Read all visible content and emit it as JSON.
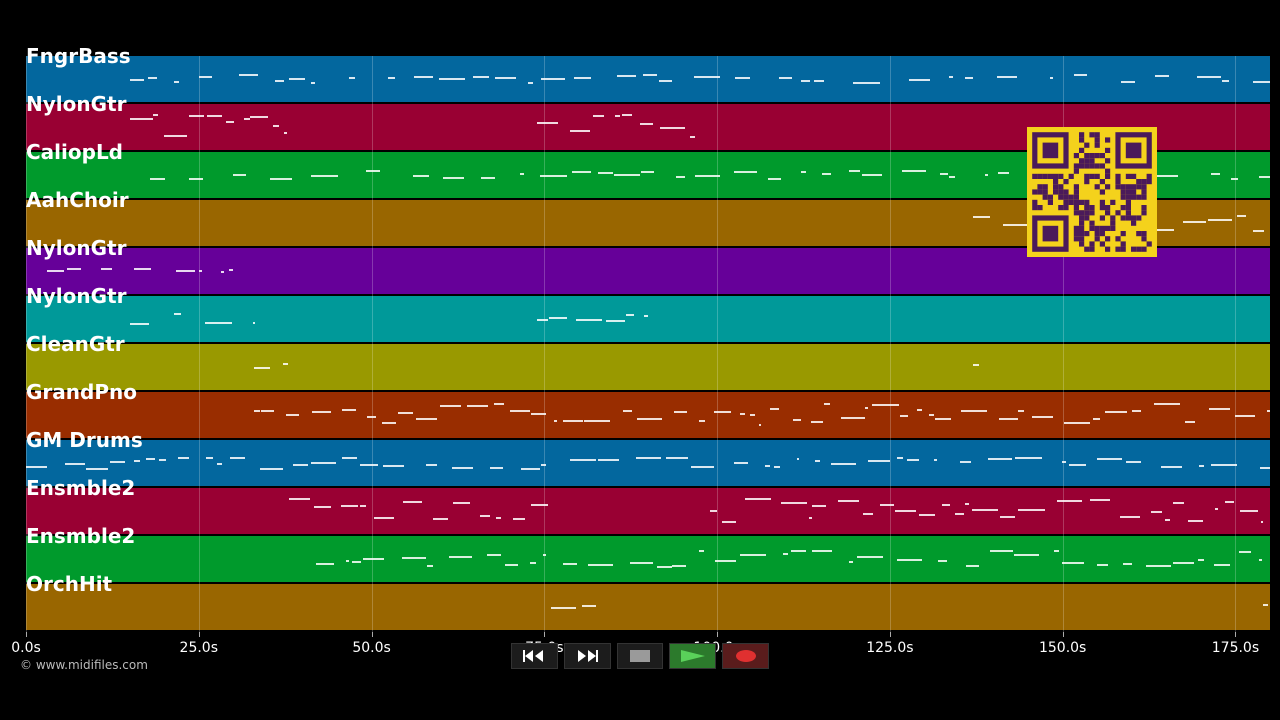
{
  "tracks": [
    {
      "label": "FngrBass",
      "color": "#03679e"
    },
    {
      "label": "NylonGtr",
      "color": "#990033"
    },
    {
      "label": "CaliopLd",
      "color": "#009a2c"
    },
    {
      "label": "AahChoir",
      "color": "#996600"
    },
    {
      "label": "NylonGtr",
      "color": "#660099"
    },
    {
      "label": "NylonGtr",
      "color": "#009999"
    },
    {
      "label": "CleanGtr",
      "color": "#999900"
    },
    {
      "label": "GrandPno",
      "color": "#992d00"
    },
    {
      "label": "GM Drums",
      "color": "#03679e"
    },
    {
      "label": "Ensmble2",
      "color": "#990033"
    },
    {
      "label": "Ensmble2",
      "color": "#009a2c"
    },
    {
      "label": "OrchHit",
      "color": "#996600"
    }
  ],
  "timeline": {
    "ticks": [
      "0.0s",
      "25.0s",
      "50.0s",
      "75.0s",
      "100.0s",
      "125.0s",
      "150.0s",
      "175.0s"
    ],
    "tick_seconds": [
      0,
      25,
      50,
      75,
      100,
      125,
      150,
      175
    ],
    "max_seconds": 180
  },
  "copyright": "© www.midifiles.com",
  "transport": {
    "rewind_icon": "rewind-icon",
    "fast_forward_icon": "fast-forward-icon",
    "stop_icon": "stop-icon",
    "play_icon": "play-icon",
    "record_icon": "record-icon"
  },
  "qr_code": {
    "color": "#f4d21c",
    "module_color": "#4a1a5a"
  }
}
